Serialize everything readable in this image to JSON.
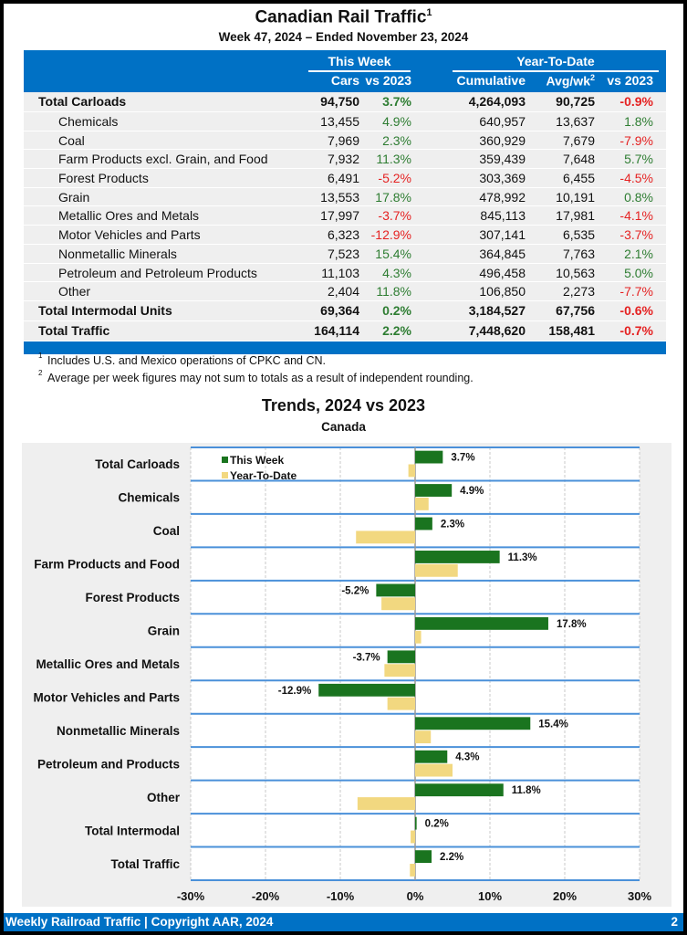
{
  "header": {
    "title": "Canadian Rail Traffic",
    "title_sup": "1",
    "subtitle": "Week 47, 2024 – Ended November 23, 2024"
  },
  "table": {
    "group_this_week": "This Week",
    "group_ytd": "Year-To-Date",
    "columns": [
      "Cars",
      "vs 2023",
      "Cumulative",
      "Avg/wk",
      "vs 2023"
    ],
    "avg_sup": "2",
    "rows": [
      {
        "label": "Total Carloads",
        "total": true,
        "cars": "94,750",
        "vs_week": "3.7%",
        "cumulative": "4,264,093",
        "avg": "90,725",
        "vs_ytd": "-0.9%"
      },
      {
        "label": "Chemicals",
        "total": false,
        "cars": "13,455",
        "vs_week": "4.9%",
        "cumulative": "640,957",
        "avg": "13,637",
        "vs_ytd": "1.8%"
      },
      {
        "label": "Coal",
        "total": false,
        "cars": "7,969",
        "vs_week": "2.3%",
        "cumulative": "360,929",
        "avg": "7,679",
        "vs_ytd": "-7.9%"
      },
      {
        "label": "Farm Products excl. Grain, and Food",
        "total": false,
        "cars": "7,932",
        "vs_week": "11.3%",
        "cumulative": "359,439",
        "avg": "7,648",
        "vs_ytd": "5.7%"
      },
      {
        "label": "Forest Products",
        "total": false,
        "cars": "6,491",
        "vs_week": "-5.2%",
        "cumulative": "303,369",
        "avg": "6,455",
        "vs_ytd": "-4.5%"
      },
      {
        "label": "Grain",
        "total": false,
        "cars": "13,553",
        "vs_week": "17.8%",
        "cumulative": "478,992",
        "avg": "10,191",
        "vs_ytd": "0.8%"
      },
      {
        "label": "Metallic Ores and Metals",
        "total": false,
        "cars": "17,997",
        "vs_week": "-3.7%",
        "cumulative": "845,113",
        "avg": "17,981",
        "vs_ytd": "-4.1%"
      },
      {
        "label": "Motor Vehicles and Parts",
        "total": false,
        "cars": "6,323",
        "vs_week": "-12.9%",
        "cumulative": "307,141",
        "avg": "6,535",
        "vs_ytd": "-3.7%"
      },
      {
        "label": "Nonmetallic Minerals",
        "total": false,
        "cars": "7,523",
        "vs_week": "15.4%",
        "cumulative": "364,845",
        "avg": "7,763",
        "vs_ytd": "2.1%"
      },
      {
        "label": "Petroleum and Petroleum Products",
        "total": false,
        "cars": "11,103",
        "vs_week": "4.3%",
        "cumulative": "496,458",
        "avg": "10,563",
        "vs_ytd": "5.0%"
      },
      {
        "label": "Other",
        "total": false,
        "cars": "2,404",
        "vs_week": "11.8%",
        "cumulative": "106,850",
        "avg": "2,273",
        "vs_ytd": "-7.7%"
      },
      {
        "label": "Total Intermodal Units",
        "total": true,
        "cars": "69,364",
        "vs_week": "0.2%",
        "cumulative": "3,184,527",
        "avg": "67,756",
        "vs_ytd": "-0.6%"
      },
      {
        "label": "Total Traffic",
        "total": true,
        "cars": "164,114",
        "vs_week": "2.2%",
        "cumulative": "7,448,620",
        "avg": "158,481",
        "vs_ytd": "-0.7%"
      }
    ]
  },
  "notes": [
    {
      "sup": "1",
      "text": "Includes U.S. and Mexico operations of CPKC and CN."
    },
    {
      "sup": "2",
      "text": "Average per week figures may not sum to totals as a result of independent rounding."
    }
  ],
  "colors": {
    "brand_blue": "#0071c5",
    "positive": "#2e7d32",
    "negative": "#e52222",
    "this_week_bar": "#1a741f",
    "ytd_bar": "#f2d880",
    "row_divider": "#4a90d9"
  },
  "chart_data": {
    "type": "bar",
    "orientation": "horizontal",
    "title": "Trends, 2024 vs 2023",
    "subtitle": "Canada",
    "xlabel": "",
    "ylabel": "",
    "xlim": [
      -30,
      30
    ],
    "xticks": [
      -30,
      -20,
      -10,
      0,
      10,
      20,
      30
    ],
    "xtick_labels": [
      "-30%",
      "-20%",
      "-10%",
      "0%",
      "10%",
      "20%",
      "30%"
    ],
    "grid": true,
    "legend_position": "top-left",
    "categories": [
      "Total Carloads",
      "Chemicals",
      "Coal",
      "Farm Products and Food",
      "Forest Products",
      "Grain",
      "Metallic Ores and Metals",
      "Motor Vehicles and Parts",
      "Nonmetallic Minerals",
      "Petroleum and Products",
      "Other",
      "Total Intermodal",
      "Total Traffic"
    ],
    "series": [
      {
        "name": "This Week",
        "values": [
          3.7,
          4.9,
          2.3,
          11.3,
          -5.2,
          17.8,
          -3.7,
          -12.9,
          15.4,
          4.3,
          11.8,
          0.2,
          2.2
        ],
        "labels": [
          "3.7%",
          "4.9%",
          "2.3%",
          "11.3%",
          "-5.2%",
          "17.8%",
          "-3.7%",
          "-12.9%",
          "15.4%",
          "4.3%",
          "11.8%",
          "0.2%",
          "2.2%"
        ]
      },
      {
        "name": "Year-To-Date",
        "values": [
          -0.9,
          1.8,
          -7.9,
          5.7,
          -4.5,
          0.8,
          -4.1,
          -3.7,
          2.1,
          5.0,
          -7.7,
          -0.6,
          -0.7
        ]
      }
    ]
  },
  "footer": {
    "left": "Weekly Railroad Traffic | Copyright AAR, 2024",
    "page": "2"
  }
}
